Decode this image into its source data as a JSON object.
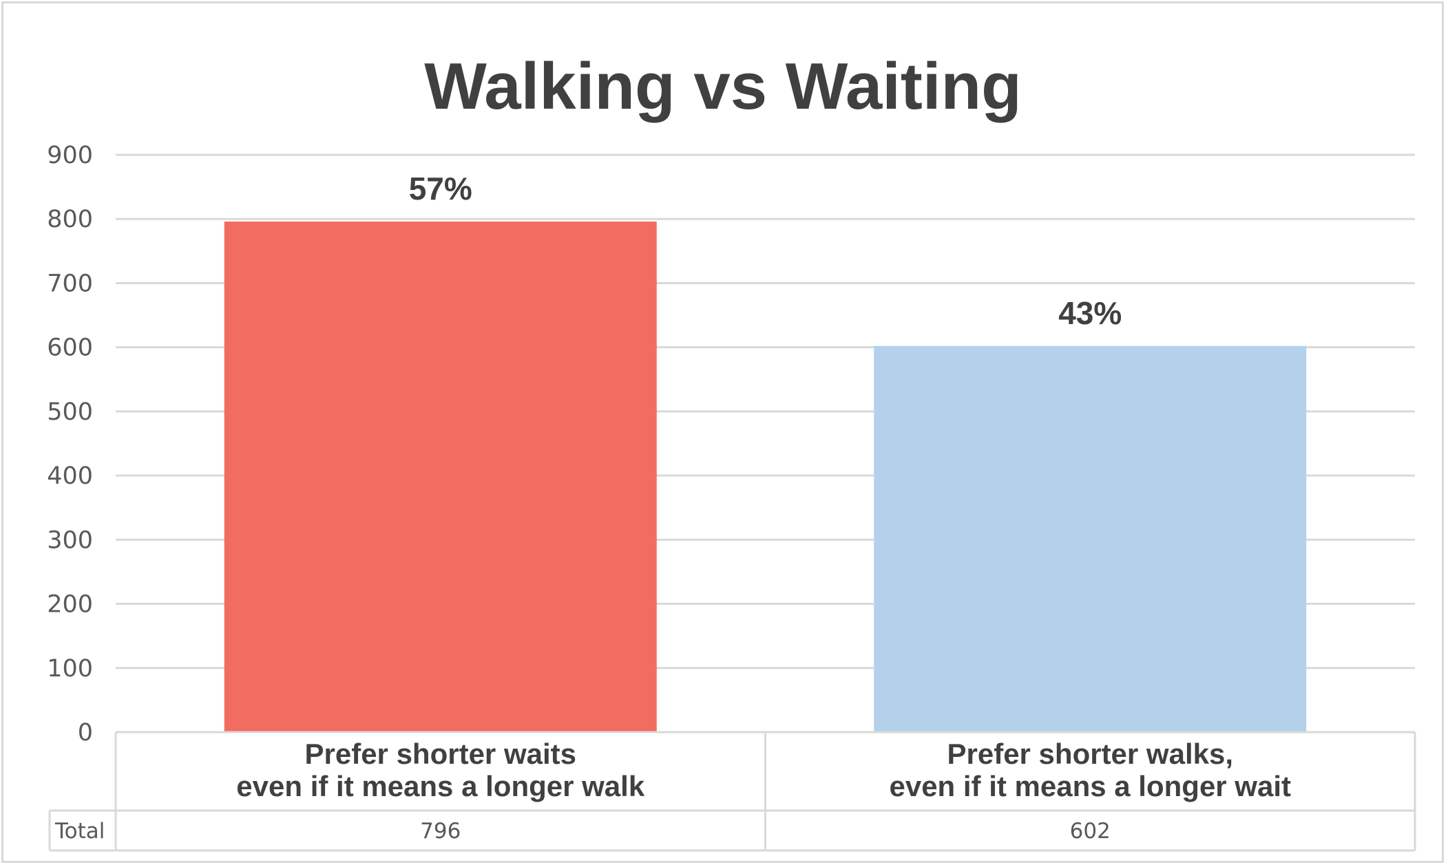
{
  "chart_data": {
    "type": "bar",
    "title": "Walking vs Waiting",
    "categories": [
      [
        "Prefer shorter waits",
        "even if it means a longer walk"
      ],
      [
        "Prefer shorter walks,",
        "even if it means a longer wait"
      ]
    ],
    "values": [
      796,
      602
    ],
    "data_labels": [
      "57%",
      "43%"
    ],
    "colors": [
      "#f36c60",
      "#b4d1ec"
    ],
    "ylim": [
      0,
      900
    ],
    "yticks": [
      0,
      100,
      200,
      300,
      400,
      500,
      600,
      700,
      800,
      900
    ],
    "grid": true,
    "xlabel": "",
    "ylabel": "",
    "data_table": {
      "row_label": "Total",
      "values": [
        "796",
        "602"
      ]
    }
  }
}
